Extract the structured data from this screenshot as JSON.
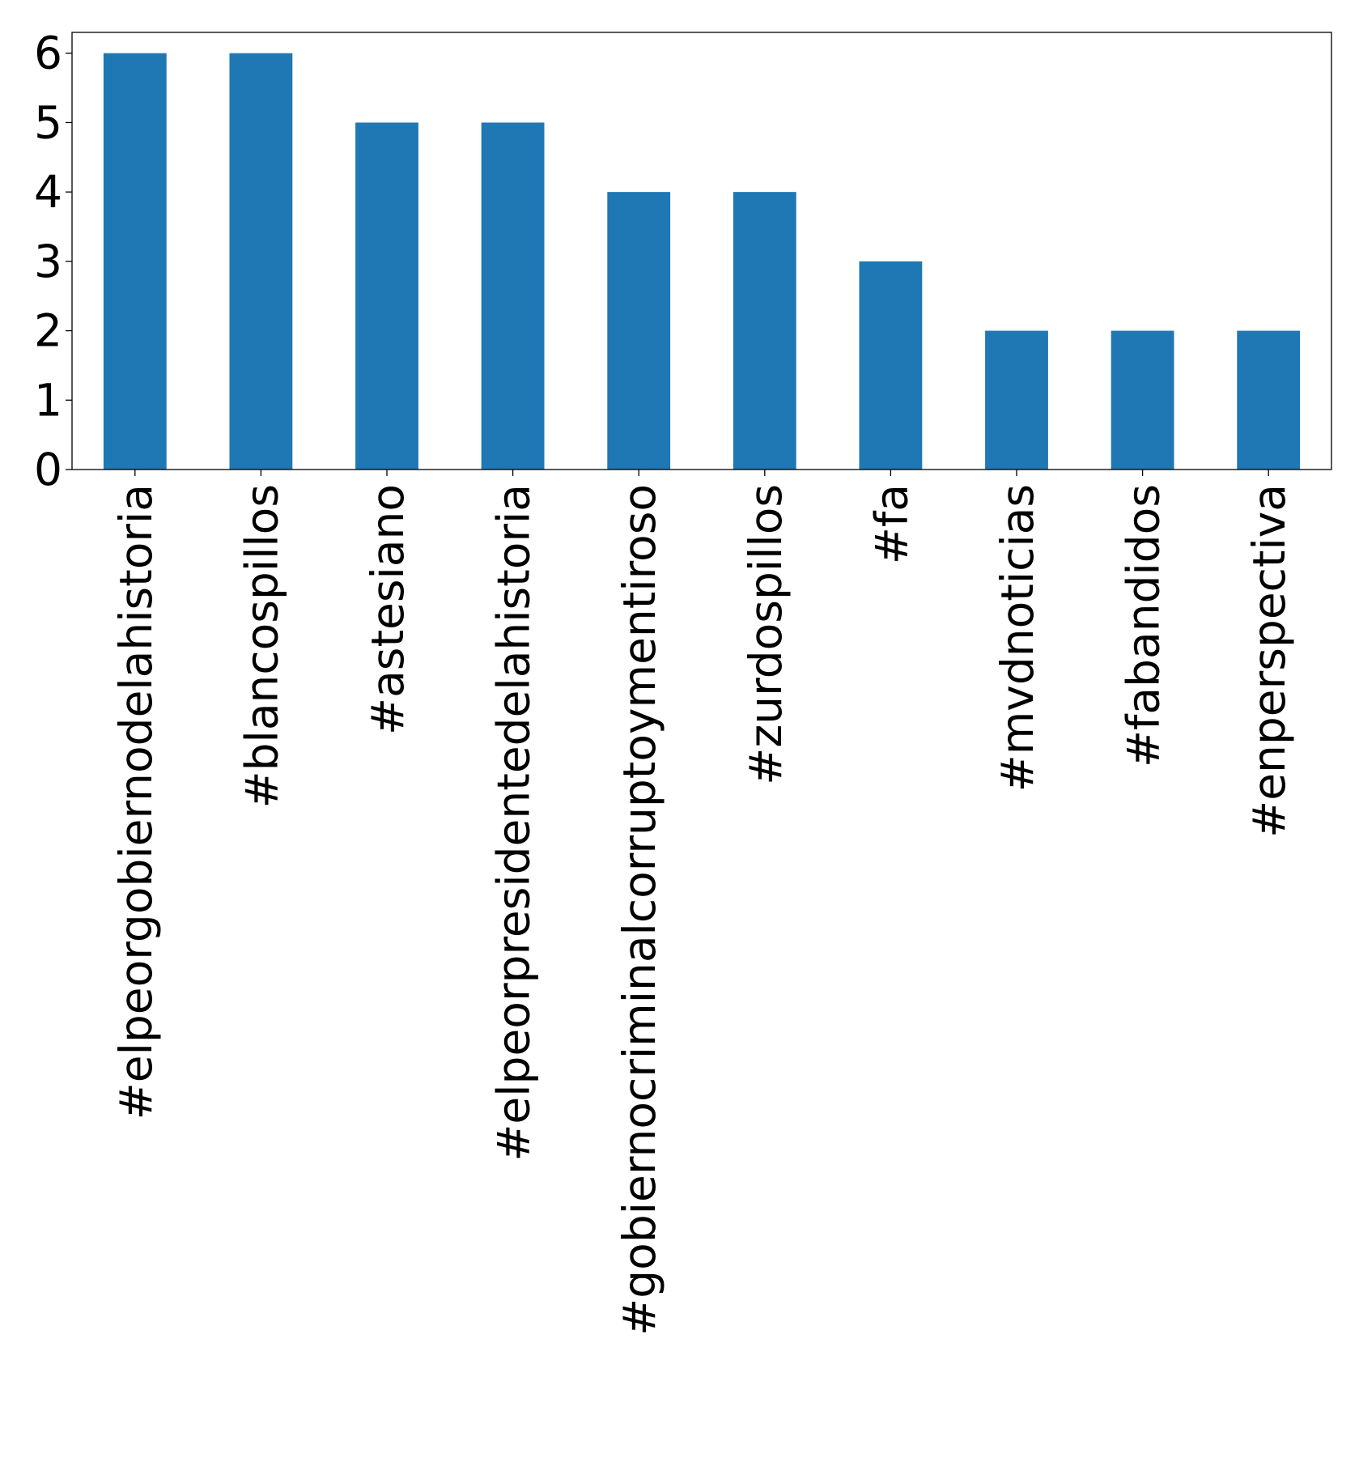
{
  "chart_data": {
    "type": "bar",
    "title": "",
    "xlabel": "",
    "ylabel": "",
    "categories": [
      "#elpeorgobiernodelahistoria",
      "#blancospillos",
      "#astesiano",
      "#elpeorpresidentedelahistoria",
      "#gobiernocriminalcorruptoymentiroso",
      "#zurdospillos",
      "#fa",
      "#mvdnoticias",
      "#fabandidos",
      "#enperspectiva"
    ],
    "values": [
      6,
      6,
      5,
      5,
      4,
      4,
      3,
      2,
      2,
      2
    ],
    "yticks": [
      "0",
      "1",
      "2",
      "3",
      "4",
      "5",
      "6"
    ],
    "ylim": [
      0,
      6.3
    ],
    "grid": false,
    "bar_color": "#1f77b4",
    "axis_color": "#000000"
  }
}
